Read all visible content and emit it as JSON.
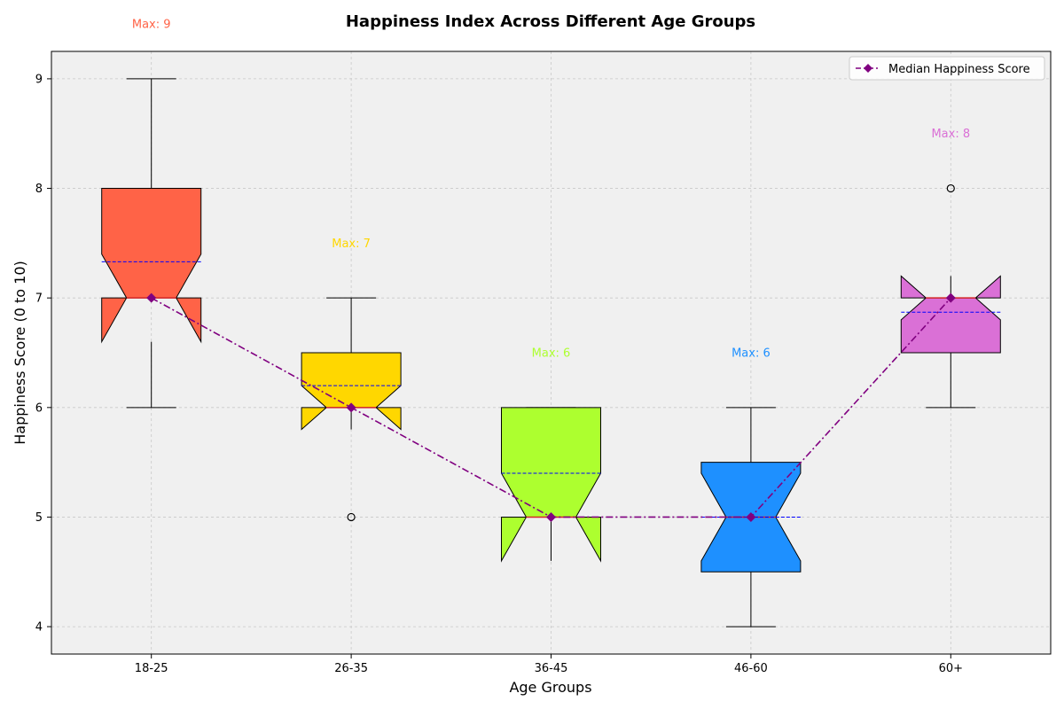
{
  "chart_data": {
    "type": "box",
    "title": "Happiness Index Across Different Age Groups",
    "xlabel": "Age Groups",
    "ylabel": "Happiness Score (0 to 10)",
    "ylim": [
      3.75,
      9.25
    ],
    "yticks": [
      4,
      5,
      6,
      7,
      8,
      9
    ],
    "grid": true,
    "legend_position": "top-right",
    "categories": [
      "18-25",
      "26-35",
      "36-45",
      "46-60",
      "60+"
    ],
    "boxes": [
      {
        "category": "18-25",
        "whisker_low": 6,
        "q1": 7,
        "median": 7,
        "q3": 8,
        "whisker_high": 9,
        "mean": 7.33,
        "notch_low": 6.6,
        "notch_high": 7.4,
        "outliers": [],
        "color": "#FF6347",
        "max_label": "Max: 9"
      },
      {
        "category": "26-35",
        "whisker_low": 6,
        "q1": 6,
        "median": 6,
        "q3": 6.5,
        "whisker_high": 7,
        "mean": 6.2,
        "notch_low": 5.8,
        "notch_high": 6.2,
        "outliers": [
          5
        ],
        "color": "#FFD700",
        "max_label": "Max: 7"
      },
      {
        "category": "36-45",
        "whisker_low": 5,
        "q1": 5,
        "median": 5,
        "q3": 6,
        "whisker_high": 6,
        "mean": 5.4,
        "notch_low": 4.6,
        "notch_high": 5.4,
        "outliers": [],
        "color": "#ADFF2F",
        "max_label": "Max: 6"
      },
      {
        "category": "46-60",
        "whisker_low": 4,
        "q1": 4.5,
        "median": 5,
        "q3": 5.5,
        "whisker_high": 6,
        "mean": 5.0,
        "notch_low": 4.6,
        "notch_high": 5.4,
        "outliers": [],
        "color": "#1E90FF",
        "max_label": "Max: 6"
      },
      {
        "category": "60+",
        "whisker_low": 6,
        "q1": 6.5,
        "median": 7,
        "q3": 7,
        "whisker_high": 7,
        "mean": 6.87,
        "notch_low": 6.8,
        "notch_high": 7.2,
        "outliers": [
          8
        ],
        "color": "#DA70D6",
        "max_label": "Max: 8"
      }
    ],
    "median_line": {
      "name": "Median Happiness Score",
      "values": [
        7,
        6,
        5,
        5,
        7
      ],
      "color": "#800080"
    },
    "max_label_values": [
      9,
      7,
      6,
      6,
      8
    ]
  }
}
